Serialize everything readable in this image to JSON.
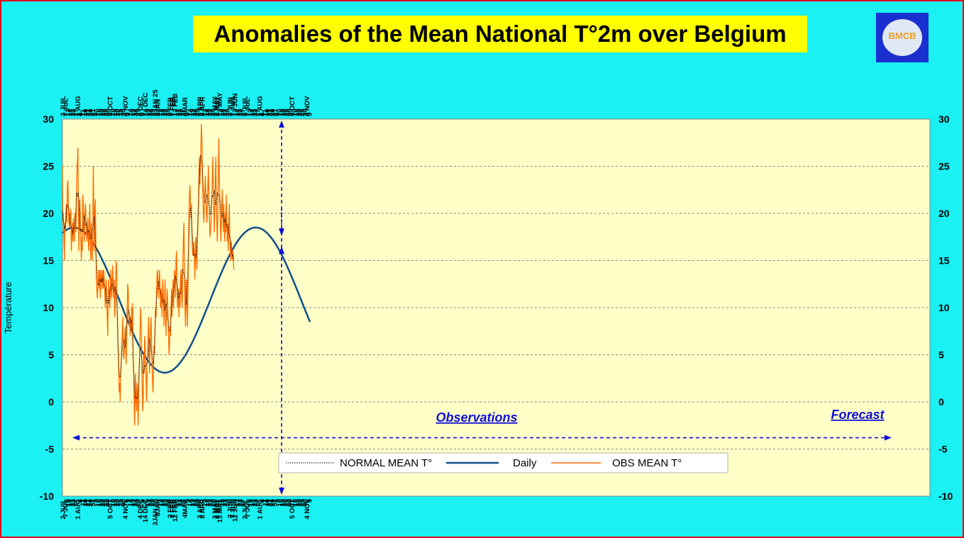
{
  "title": "Anomalies of the Mean National T°2m over Belgium",
  "logo": {
    "text": "BMCB",
    "icon": "bmcb-logo-icon"
  },
  "chart_data": {
    "type": "line",
    "ylabel": "Température",
    "ylim": [
      -10,
      30
    ],
    "yticks": [
      -10,
      -5,
      0,
      5,
      10,
      15,
      20,
      25,
      30
    ],
    "grid": true,
    "x_start_date": "2024-07-02",
    "forecast_start_date": "2025-09-15",
    "x_tick_labels": [
      "2 JUIL",
      "7 JUL",
      "12",
      "17",
      "22",
      "27",
      "1 AUG",
      "6",
      "11",
      "16",
      "21",
      "26",
      "31",
      "5",
      "10",
      "15",
      "20",
      "25",
      "30",
      "5 OCT",
      "10",
      "15",
      "20",
      "25",
      "30",
      "4 NOV",
      "9",
      "14",
      "19",
      "24",
      "29",
      "4 DEC",
      "9",
      "14 DEC",
      "19",
      "24",
      "29",
      "3JAN 25",
      "8JAN",
      "13",
      "18",
      "23",
      "28",
      "2 FEB",
      "7 FEB",
      "12 FEB",
      "17",
      "22",
      "27",
      "4MAR",
      "9",
      "14",
      "19",
      "24",
      "29",
      "3 APR",
      "8 APR",
      "13",
      "18",
      "23",
      "28",
      "3 MAY",
      "8 MAY",
      "13 MAY",
      "18",
      "23",
      "28",
      "2 JUN",
      "7 JUN",
      "12 JUN",
      "17",
      "22",
      "27",
      "2 JUIL",
      "7 JUL",
      "12",
      "17",
      "22",
      "27",
      "1 AUG",
      "6",
      "11",
      "16",
      "21",
      "26",
      "31",
      "5",
      "10",
      "15",
      "20",
      "25",
      "30",
      "5 OCT",
      "10",
      "15",
      "20",
      "25",
      "30",
      "4 NOV",
      "9"
    ],
    "normal": {
      "name": "NORMAL MEAN T°",
      "color": "#10508a",
      "model": {
        "mean": 10.8,
        "amplitude": 7.7,
        "peak_date": "2024-07-25"
      },
      "start": 18.0,
      "end": 8.6
    },
    "daily": {
      "name": "Daily",
      "color": "#000000",
      "style": "dotted"
    },
    "obs": {
      "name": "OBS MEAN T°",
      "color": "#ff6a00",
      "values": [
        25.0,
        19.0,
        20.0,
        17.0,
        15.0,
        19.0,
        18.0,
        20.0,
        21.0,
        19.0,
        23.0,
        23.5,
        21.0,
        19.0,
        18.5,
        20.0,
        19.0,
        20.5,
        16.0,
        18.0,
        19.0,
        17.0,
        19.5,
        18.0,
        17.0,
        20.0,
        19.0,
        18.0,
        21.0,
        24.0,
        25.5,
        27.0,
        21.0,
        16.0,
        20.5,
        21.5,
        19.0,
        17.0,
        15.0,
        17.5,
        16.0,
        22.0,
        21.0,
        18.0,
        17.0,
        19.5,
        21.0,
        20.0,
        18.5,
        17.0,
        18.0,
        19.5,
        17.0,
        16.0,
        19.0,
        21.0,
        17.0,
        15.0,
        19.0,
        17.0,
        15.0,
        17.0,
        25.0,
        21.0,
        16.0,
        20.0,
        21.5,
        17.0,
        13.0,
        12.0,
        11.0,
        12.0,
        13.0,
        14.0,
        12.0,
        14.0,
        11.0,
        13.0,
        14.0,
        13.0,
        12.0,
        14.0,
        12.0,
        14.0,
        13.0,
        12.0,
        10.0,
        12.0,
        13.0,
        11.0,
        9.0,
        7.0,
        11.0,
        13.0,
        12.0,
        10.0,
        11.0,
        14.0,
        12.0,
        11.0,
        13.0,
        14.5,
        12.0,
        11.0,
        13.0,
        9.0,
        10.0,
        13.0,
        15.0,
        14.0,
        10.0,
        7.0,
        5.0,
        3.0,
        1.0,
        2.0,
        0.0,
        3.0,
        4.0,
        6.0,
        7.0,
        9.0,
        6.0,
        4.5,
        5.0,
        6.5,
        8.0,
        6.0,
        4.0,
        7.0,
        10.0,
        12.5,
        12.0,
        10.0,
        8.0,
        9.0,
        7.0,
        9.0,
        8.0,
        10.0,
        7.5,
        10.5,
        5.0,
        3.0,
        0.0,
        -2.5,
        1.0,
        3.0,
        0.0,
        -1.0,
        2.0,
        1.0,
        -2.5,
        0.0,
        3.0,
        5.0,
        8.0,
        10.0,
        8.0,
        5.0,
        2.0,
        -1.0,
        0.0,
        5.0,
        3.0,
        7.0,
        6.0,
        4.0,
        2.0,
        0.0,
        4.0,
        5.0,
        7.0,
        9.0,
        5.0,
        3.0,
        6.0,
        8.0,
        9.0,
        6.0,
        4.0,
        2.0,
        1.0,
        4.0,
        6.0,
        5.0,
        8.0,
        10.0,
        9.0,
        12.0,
        13.5,
        14.0,
        12.0,
        11.0,
        13.0,
        14.0,
        12.0,
        10.0,
        12.0,
        11.0,
        9.0,
        13.0,
        12.0,
        10.0,
        8.0,
        11.0,
        13.0,
        9.0,
        7.0,
        10.0,
        12.0,
        11.0,
        9.0,
        7.0,
        5.0,
        6.0,
        8.0,
        7.0,
        10.0,
        12.0,
        9.0,
        11.0,
        13.0,
        10.0,
        12.0,
        14.0,
        13.0,
        11.0,
        15.0,
        16.0,
        13.0,
        10.0,
        12.0,
        11.0,
        9.0,
        12.0,
        10.0,
        13.0,
        14.0,
        12.0,
        10.0,
        11.0,
        15.0,
        17.5,
        19.0,
        14.0,
        10.0,
        8.0,
        11.0,
        13.0,
        10.0,
        8.0,
        12.0,
        16.0,
        20.0,
        22.0,
        23.0,
        21.0,
        19.5,
        21.0,
        18.0,
        16.0,
        15.5,
        16.0,
        17.0,
        15.0,
        13.0,
        16.0,
        17.5,
        15.0,
        14.0,
        17.0,
        19.0,
        21.0,
        24.0,
        26.0,
        23.0,
        25.0,
        27.0,
        29.5,
        28.0,
        25.0,
        22.0,
        20.0,
        19.0,
        21.0,
        22.5,
        24.0,
        22.0,
        20.0,
        19.0,
        21.0,
        23.0,
        25.0,
        22.0,
        20.0,
        17.5,
        18.0,
        19.0,
        20.5,
        22.0,
        24.0,
        26.0,
        22.0,
        20.0,
        18.0,
        21.0,
        24.0,
        26.0,
        21.0,
        19.0,
        17.0,
        20.0,
        24.5,
        28.0,
        24.0,
        21.0,
        19.0,
        17.0,
        19.0,
        21.0,
        22.5,
        20.0,
        18.0,
        21.0,
        19.0,
        17.0,
        20.0,
        18.0,
        22.0,
        19.0,
        17.0,
        18.5,
        16.0,
        19.0,
        21.0,
        17.5,
        16.0,
        15.0,
        17.0,
        16.0,
        15.0,
        16.0,
        15.5,
        14.0
      ]
    },
    "annotations": [
      {
        "text": "Observations",
        "color": "#1010d8"
      },
      {
        "text": "Forecast",
        "color": "#1010d8"
      }
    ],
    "legend_placement": "bottom-center"
  }
}
